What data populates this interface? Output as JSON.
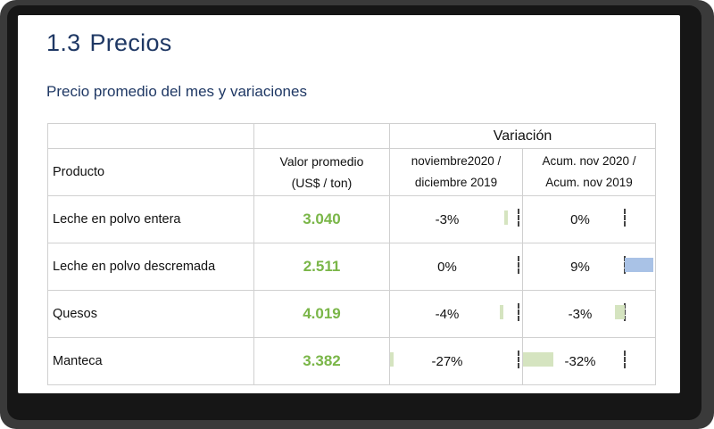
{
  "section": {
    "number": "1.3",
    "title": "Precios"
  },
  "subtitle": "Precio promedio del mes y variaciones",
  "table": {
    "variation_header": "Variación",
    "headers": {
      "product": "Producto",
      "value_line1": "Valor promedio",
      "value_line2": "(US$ / ton)",
      "var1_line1": "noviembre2020 /",
      "var1_line2": "diciembre 2019",
      "var2_line1": "Acum. nov 2020 /",
      "var2_line2": "Acum. nov 2019"
    },
    "rows": [
      {
        "product": "Leche en polvo entera",
        "value": "3.040",
        "var1": "-3%",
        "var1_value": -3,
        "var2": "0%",
        "var2_value": 0
      },
      {
        "product": "Leche en polvo descremada",
        "value": "2.511",
        "var1": "0%",
        "var1_value": 0,
        "var2": "9%",
        "var2_value": 9
      },
      {
        "product": "Quesos",
        "value": "4.019",
        "var1": "-4%",
        "var1_value": -4,
        "var2": "-3%",
        "var2_value": -3
      },
      {
        "product": "Manteca",
        "value": "3.382",
        "var1": "-27%",
        "var1_value": -27,
        "var2": "-32%",
        "var2_value": -32
      }
    ]
  },
  "colors": {
    "heading": "#1f3864",
    "value_green": "#7ab648",
    "bar_negative": "#d5e4c0",
    "bar_positive": "#a9c2e6"
  }
}
